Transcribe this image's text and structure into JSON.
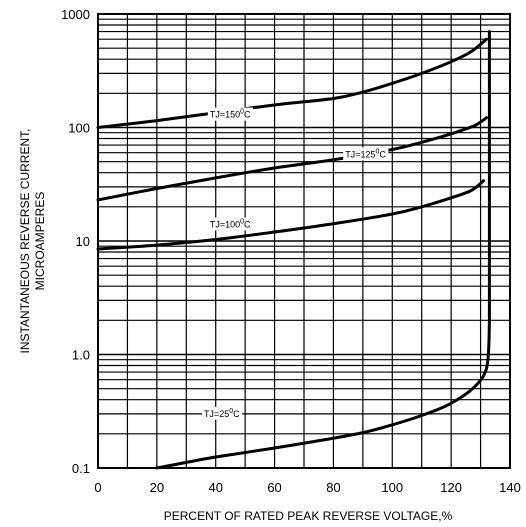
{
  "chart_data": {
    "type": "line",
    "title": "",
    "xlabel": "PERCENT OF RATED PEAK REVERSE VOLTAGE,%",
    "ylabel_lines": [
      "INSTANTANEOUS REVERSE CURRENT,",
      "MICROAMPERES"
    ],
    "xlim": [
      0,
      140
    ],
    "ylim": [
      0.1,
      1000
    ],
    "y_scale": "log",
    "grid": true,
    "x_ticks": [
      "0",
      "20",
      "40",
      "60",
      "80",
      "100",
      "120",
      "140"
    ],
    "y_ticks": [
      {
        "value": 0.1,
        "label": "0.1"
      },
      {
        "value": 1,
        "label": "1.0"
      },
      {
        "value": 10,
        "label": "10"
      },
      {
        "value": 100,
        "label": "100"
      },
      {
        "value": 1000,
        "label": "1000"
      }
    ],
    "series": [
      {
        "label_main": "TJ=150",
        "label_sup": "0",
        "label_unit": "C",
        "label_at": [
          38,
          130
        ],
        "points": [
          [
            0,
            100
          ],
          [
            20,
            115
          ],
          [
            40,
            135
          ],
          [
            60,
            158
          ],
          [
            80,
            180
          ],
          [
            90,
            205
          ],
          [
            100,
            245
          ],
          [
            110,
            300
          ],
          [
            120,
            380
          ],
          [
            127,
            470
          ],
          [
            132,
            600
          ]
        ]
      },
      {
        "label_main": "TJ=125",
        "label_sup": "0",
        "label_unit": "C",
        "label_at": [
          84,
          58
        ],
        "points": [
          [
            0,
            23
          ],
          [
            20,
            29
          ],
          [
            40,
            36
          ],
          [
            60,
            44
          ],
          [
            80,
            52
          ],
          [
            100,
            64
          ],
          [
            110,
            74
          ],
          [
            120,
            88
          ],
          [
            128,
            104
          ],
          [
            132,
            122
          ]
        ]
      },
      {
        "label_main": "TJ=100",
        "label_sup": "0",
        "label_unit": "C",
        "label_at": [
          38,
          14
        ],
        "points": [
          [
            0,
            8.5
          ],
          [
            20,
            9.2
          ],
          [
            40,
            10.3
          ],
          [
            60,
            12
          ],
          [
            80,
            14.2
          ],
          [
            100,
            17.3
          ],
          [
            110,
            20
          ],
          [
            120,
            24
          ],
          [
            127,
            28
          ],
          [
            131,
            34
          ]
        ]
      },
      {
        "label_main": "TJ=25",
        "label_sup": "0",
        "label_unit": "C",
        "label_at": [
          36,
          0.3
        ],
        "points": [
          [
            20,
            0.1
          ],
          [
            30,
            0.112
          ],
          [
            40,
            0.125
          ],
          [
            60,
            0.15
          ],
          [
            80,
            0.183
          ],
          [
            90,
            0.205
          ],
          [
            100,
            0.24
          ],
          [
            110,
            0.29
          ],
          [
            118,
            0.35
          ],
          [
            124,
            0.43
          ],
          [
            128,
            0.52
          ],
          [
            131,
            0.65
          ],
          [
            132.5,
            0.9
          ],
          [
            133,
            2
          ],
          [
            133,
            10
          ],
          [
            133,
            100
          ],
          [
            133,
            700
          ]
        ]
      }
    ]
  }
}
